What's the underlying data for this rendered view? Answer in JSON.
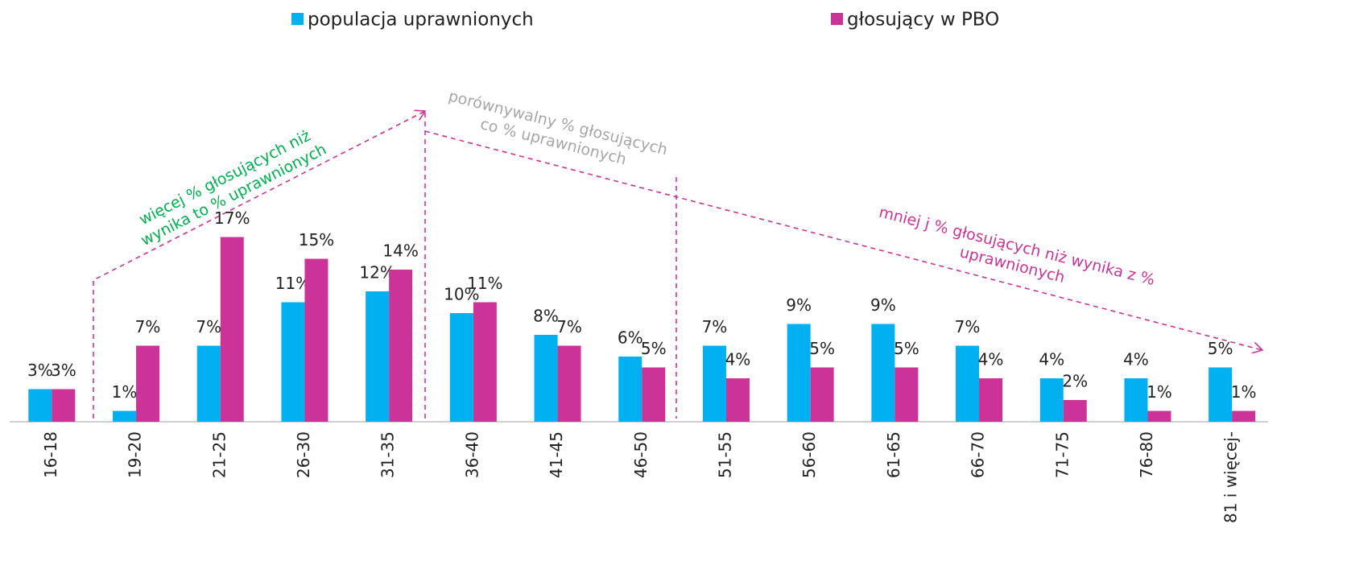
{
  "chart_data": {
    "type": "bar",
    "categories": [
      "16-18",
      "19-20",
      "21-25",
      "26-30",
      "31-35",
      "36-40",
      "41-45",
      "46-50",
      "51-55",
      "56-60",
      "61-65",
      "66-70",
      "71-75",
      "76-80",
      "81 i więcej-"
    ],
    "series": [
      {
        "name": "populacja uprawnionych",
        "color": "#00b0f0",
        "values": [
          3,
          1,
          7,
          11,
          12,
          10,
          8,
          6,
          7,
          9,
          9,
          7,
          4,
          4,
          5
        ],
        "value_labels": [
          "3%",
          "1%",
          "7%",
          "11%",
          "12%",
          "10%",
          "8%",
          "6%",
          "7%",
          "9%",
          "9%",
          "7%",
          "4%",
          "4%",
          "5%"
        ]
      },
      {
        "name": "głosujący w PBO",
        "color": "#cc3399",
        "values": [
          3,
          7,
          17,
          15,
          14,
          11,
          7,
          5,
          4,
          5,
          5,
          4,
          2,
          1,
          1
        ],
        "value_labels": [
          "3%",
          "7%",
          "17%",
          "15%",
          "14%",
          "11%",
          "7%",
          "5%",
          "4%",
          "5%",
          "5%",
          "4%",
          "2%",
          "1%",
          "1%"
        ]
      }
    ],
    "ylim": [
      0,
      20
    ],
    "annotations": [
      {
        "lines": [
          "więcej % głosujących niż",
          "wynika to % uprawnionych"
        ],
        "color": "#00b050"
      },
      {
        "lines": [
          "porównywalny % głosujących",
          "co % uprawnionych"
        ],
        "color": "#a6a6a6"
      },
      {
        "lines": [
          "mniej j % głosujących niż wynika  z %",
          "uprawnionych"
        ],
        "color": "#cc3399"
      }
    ]
  }
}
